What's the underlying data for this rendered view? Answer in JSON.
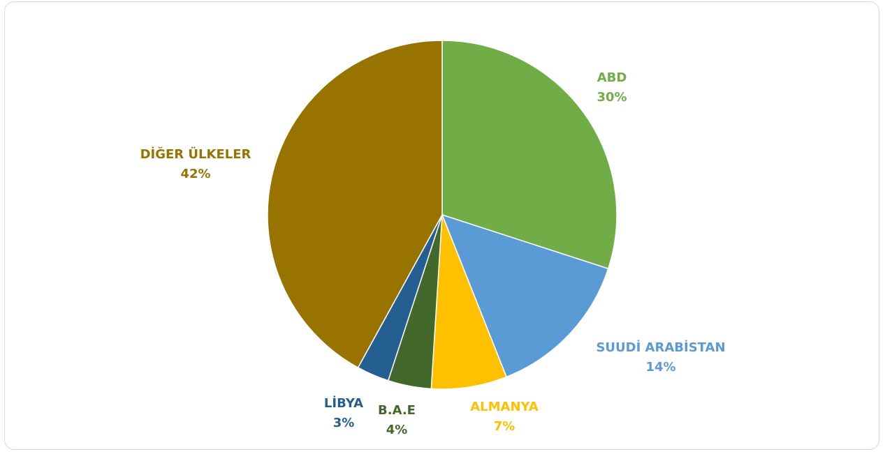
{
  "chart_data": {
    "type": "pie",
    "categories": [
      "ABD",
      "SUUDİ ARABİSTAN",
      "ALMANYA",
      "B.A.E",
      "LİBYA",
      "DİĞER ÜLKELER"
    ],
    "values": [
      30,
      14,
      7,
      4,
      3,
      42
    ],
    "value_labels": [
      "30%",
      "14%",
      "7%",
      "4%",
      "3%",
      "42%"
    ],
    "colors": [
      "#70ad47",
      "#5b9bd5",
      "#ffc000",
      "#43682b",
      "#255e91",
      "#997300"
    ]
  }
}
